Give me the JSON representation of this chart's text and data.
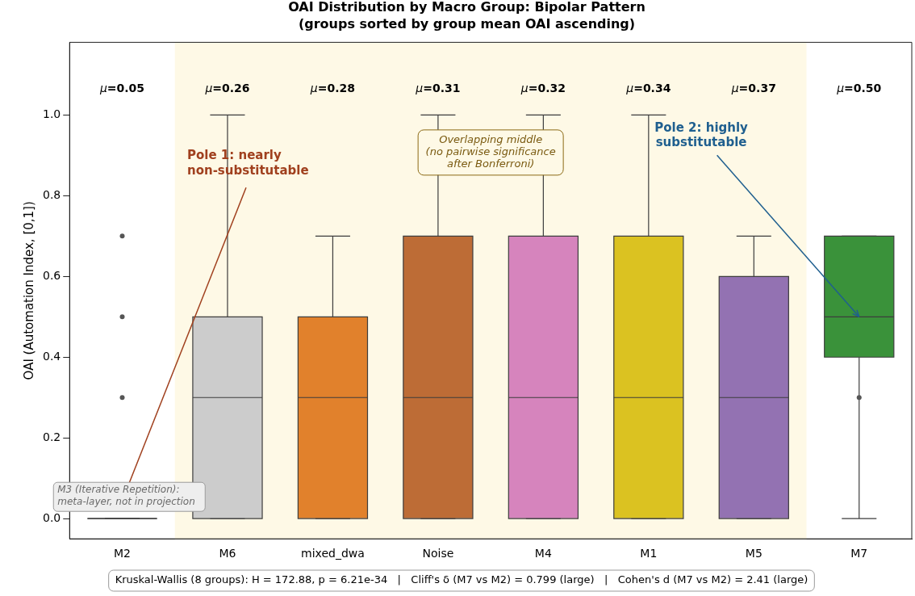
{
  "chart_data": {
    "type": "box",
    "title": "OAI Distribution by Macro Group: Bipolar Pattern",
    "subtitle": "(groups sorted by group mean OAI ascending)",
    "ylabel": "OAI (Automation Index, [0,1])",
    "categories": [
      "M2",
      "M6",
      "mixed_dwa",
      "Noise",
      "M4",
      "M1",
      "M5",
      "M7"
    ],
    "colors": [
      "#3d3d3d",
      "#cccccc",
      "#e1812c",
      "#bd6c36",
      "#d684bd",
      "#dbc221",
      "#9372b2",
      "#3a923a"
    ],
    "boxes": [
      {
        "low": 0,
        "q1": 0,
        "median": 0,
        "q3": 0,
        "high": 0,
        "outliers": [
          0.3,
          0.5,
          0.7
        ]
      },
      {
        "low": 0,
        "q1": 0,
        "median": 0.3,
        "q3": 0.5,
        "high": 1.0
      },
      {
        "low": 0,
        "q1": 0,
        "median": 0.3,
        "q3": 0.5,
        "high": 0.7
      },
      {
        "low": 0,
        "q1": 0,
        "median": 0.3,
        "q3": 0.7,
        "high": 1.0
      },
      {
        "low": 0,
        "q1": 0,
        "median": 0.3,
        "q3": 0.7,
        "high": 1.0
      },
      {
        "low": 0,
        "q1": 0,
        "median": 0.3,
        "q3": 0.7,
        "high": 1.0
      },
      {
        "low": 0,
        "q1": 0,
        "median": 0.3,
        "q3": 0.6,
        "high": 0.7
      },
      {
        "low": 0,
        "q1": 0.4,
        "median": 0.5,
        "q3": 0.7,
        "high": 0.7,
        "outliers": [
          0.3
        ]
      }
    ],
    "ylim": [
      -0.05,
      1.18
    ],
    "yticks": [
      {
        "value": 0,
        "label": "0.0"
      },
      {
        "value": 0.2,
        "label": "0.2"
      },
      {
        "value": 0.4,
        "label": "0.4"
      },
      {
        "value": 0.6,
        "label": "0.6"
      },
      {
        "value": 0.8,
        "label": "0.8"
      },
      {
        "value": 1,
        "label": "1.0"
      }
    ],
    "bands": [
      {
        "axis": "x",
        "from": "M6",
        "to": "M5",
        "color": "#fef9e6"
      }
    ],
    "annotations": [
      "μ=0.05",
      "μ=0.26",
      "μ=0.28",
      "μ=0.31",
      "μ=0.32",
      "μ=0.34",
      "μ=0.37",
      "μ=0.50",
      "Pole 1: nearly\nnon-substitutable",
      {
        "text": "Pole 2: highly\nsubstitutable",
        "x": "M7",
        "y": 0.5
      },
      "Overlapping middle\n(no pairwise significance\nafter Bonferroni)",
      "M3 (Iterative Repetition):\nmeta-layer, not in projection",
      "Kruskal-Wallis (8 groups): H = 172.88, p = 6.21e-34   |   Cliff's δ (M7 vs M2) = 0.799 (large)   |   Cohen's d (M7 vs M2) = 2.41 (large)"
    ],
    "grid": false,
    "legend": false
  }
}
